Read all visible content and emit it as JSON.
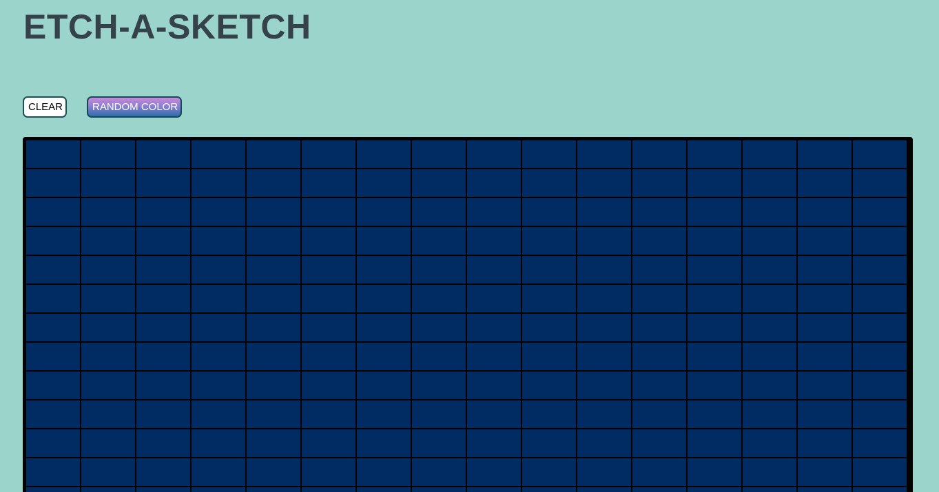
{
  "app": {
    "title": "ETCH-A-SKETCH"
  },
  "toolbar": {
    "clear_label": "CLEAR",
    "random_color_label": "RANDOM COLOR"
  },
  "board": {
    "columns": 16,
    "cell_color": "#002b63",
    "line_color": "#000000"
  },
  "colors": {
    "background": "#9bd4cb",
    "title": "#36424a"
  }
}
